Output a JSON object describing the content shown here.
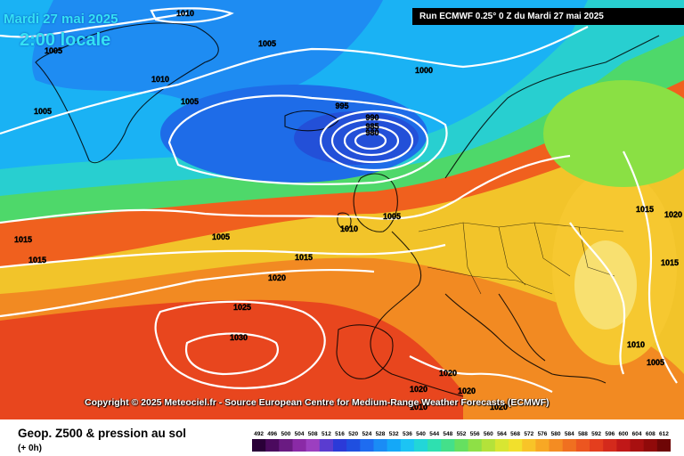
{
  "header": {
    "date": "Mardi 27 mai 2025",
    "time": "2:00 locale",
    "run": "Run ECMWF 0.25° 0 Z du Mardi 27 mai 2025"
  },
  "copyright": "Copyright © 2025 Meteociel.fr - Source European Centre for Medium-Range Weather Forecasts (ECMWF)",
  "footer": {
    "title": "Geop. Z500 & pression au sol",
    "subtitle": "(+ 0h)"
  },
  "legend": {
    "values": [
      "492",
      "496",
      "500",
      "504",
      "508",
      "512",
      "516",
      "520",
      "524",
      "528",
      "532",
      "536",
      "540",
      "544",
      "548",
      "552",
      "556",
      "560",
      "564",
      "568",
      "572",
      "576",
      "580",
      "584",
      "588",
      "592",
      "596",
      "600",
      "604",
      "608",
      "612"
    ],
    "colors": [
      "#2a0038",
      "#4b0a5e",
      "#6a1b82",
      "#8a2aa6",
      "#9c3fc0",
      "#5a3cd0",
      "#2b3ad8",
      "#1f4fe0",
      "#1e6cf0",
      "#1a8cf5",
      "#14a8f8",
      "#1cc4f4",
      "#22d6d8",
      "#2ee0b0",
      "#44e08a",
      "#66e060",
      "#8ee046",
      "#b4e23a",
      "#d8e632",
      "#f2e02c",
      "#f8c428",
      "#f8a824",
      "#f48c22",
      "#f07020",
      "#ec5620",
      "#e43e1e",
      "#d42a1c",
      "#c01818",
      "#a81010",
      "#900a0a",
      "#6e0606"
    ],
    "label_color": "#000000"
  },
  "isobars": [
    {
      "label": "1010"
    },
    {
      "label": "1005"
    },
    {
      "label": "1005"
    },
    {
      "label": "1010"
    },
    {
      "label": "1005"
    },
    {
      "label": "1005"
    },
    {
      "label": "1000"
    },
    {
      "label": "995"
    },
    {
      "label": "990"
    },
    {
      "label": "985"
    },
    {
      "label": "980"
    },
    {
      "label": "1005"
    },
    {
      "label": "1010"
    },
    {
      "label": "1015"
    },
    {
      "label": "1015"
    },
    {
      "label": "1005"
    },
    {
      "label": "1015"
    },
    {
      "label": "1020"
    },
    {
      "label": "1025"
    },
    {
      "label": "1030"
    },
    {
      "label": "1015"
    },
    {
      "label": "1015"
    },
    {
      "label": "1020"
    },
    {
      "label": "1010"
    },
    {
      "label": "1005"
    },
    {
      "label": "1020"
    },
    {
      "label": "1020"
    },
    {
      "label": "1020"
    },
    {
      "label": "1010"
    },
    {
      "label": "1020"
    }
  ]
}
